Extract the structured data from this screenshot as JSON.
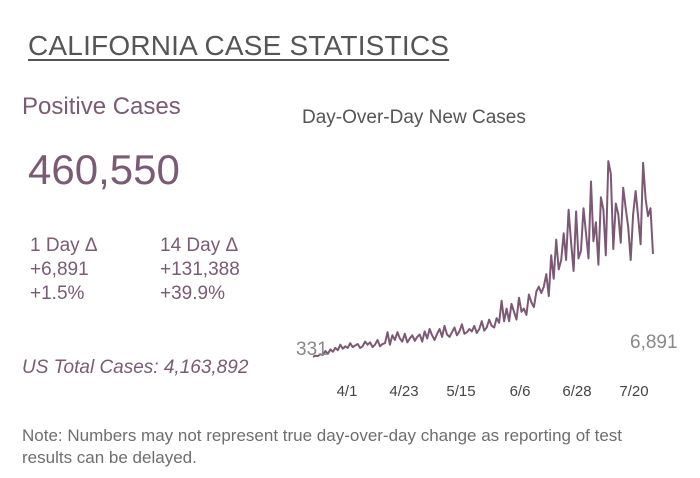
{
  "header": {
    "title": "CALIFORNIA CASE STATISTICS"
  },
  "positive": {
    "label": "Positive Cases",
    "value": "460,550"
  },
  "deltas": {
    "one_day": {
      "label": "1 Day Δ",
      "abs": "+6,891",
      "pct": "+1.5%"
    },
    "fourteen_day": {
      "label": "14 Day Δ",
      "abs": "+131,388",
      "pct": "+39.9%"
    }
  },
  "us_total": "US Total Cases: 4,163,892",
  "note": "Note: Numbers may not represent true day-over-day change as reporting of test results can be delayed.",
  "colors": {
    "accent": "#7b5a75",
    "line": "#7d5874"
  },
  "chart_data": {
    "type": "line",
    "title": "Day-Over-Day New Cases",
    "xlabel": "",
    "ylabel": "",
    "ylim": [
      0,
      13000
    ],
    "grid": false,
    "x_ticks": [
      "4/1",
      "4/23",
      "5/15",
      "6/6",
      "6/28",
      "7/20"
    ],
    "start_label": "331",
    "end_label": "6,891",
    "series": [
      {
        "values": [
          331,
          400,
          380,
          500,
          450,
          700,
          520,
          800,
          650,
          900,
          750,
          1100,
          850,
          1000,
          900,
          1200,
          950,
          1050,
          1150,
          900,
          1000,
          1300,
          1100,
          1250,
          950,
          1100,
          1400,
          1000,
          1150,
          1200,
          1900,
          1100,
          1700,
          1400,
          1900,
          1500,
          1300,
          1800,
          1250,
          1500,
          1700,
          1350,
          1600,
          1750,
          1300,
          1950,
          1500,
          2100,
          1700,
          1400,
          1800,
          2100,
          1600,
          2300,
          1750,
          1600,
          1900,
          2200,
          1700,
          1950,
          2400,
          1800,
          1900,
          2100,
          1950,
          2300,
          1850,
          2100,
          2600,
          2000,
          2200,
          2700,
          2300,
          2200,
          2800,
          2500,
          3900,
          2600,
          3400,
          2600,
          3700,
          3200,
          2700,
          4100,
          3200,
          3400,
          3000,
          4300,
          3800,
          3500,
          4500,
          4800,
          4400,
          4800,
          5600,
          4200,
          6800,
          5300,
          7800,
          5900,
          6500,
          8200,
          6500,
          9700,
          7600,
          5800,
          9600,
          6600,
          7100,
          9800,
          8200,
          6600,
          11500,
          7700,
          8900,
          6200,
          10500,
          9700,
          6800,
          12800,
          12000,
          7200,
          10100,
          9400,
          7600,
          11100,
          9800,
          8600,
          6500,
          9400,
          10900,
          9300,
          7500,
          12700,
          10400,
          9300,
          9800,
          6891
        ]
      }
    ]
  }
}
